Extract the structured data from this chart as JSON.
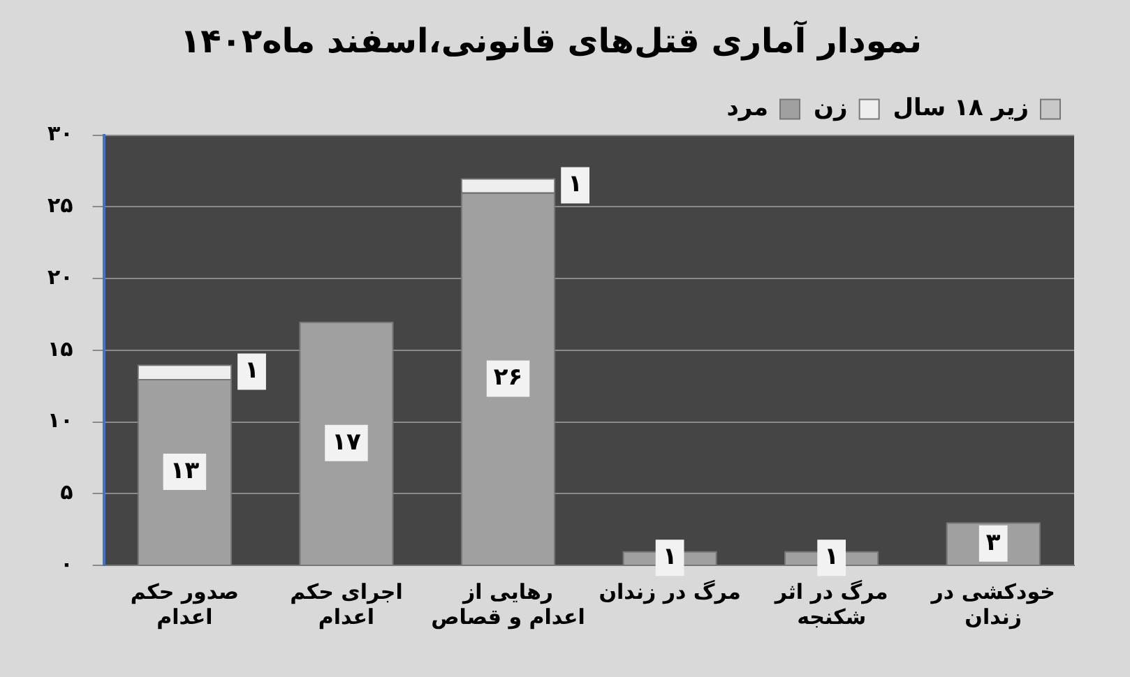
{
  "chart_data": {
    "type": "bar",
    "title": "نمودار آماری قتل‌های قانونی،اسفند ماه۱۴۰۲",
    "categories": [
      "صدور حکم اعدام",
      "اجرای حکم اعدام",
      "رهایی از اعدام و قصاص",
      "مرگ در زندان",
      "مرگ در اثر شکنجه",
      "خودکشی در زندان"
    ],
    "stacked": true,
    "ylim": [
      0,
      30
    ],
    "yticks": [
      {
        "value": 0,
        "label": "۰"
      },
      {
        "value": 5,
        "label": "۵"
      },
      {
        "value": 10,
        "label": "۱۰"
      },
      {
        "value": 15,
        "label": "۱۵"
      },
      {
        "value": 20,
        "label": "۲۰"
      },
      {
        "value": 25,
        "label": "۲۵"
      },
      {
        "value": 30,
        "label": "۳۰"
      }
    ],
    "grid": "y",
    "legend": "top right",
    "series": [
      {
        "name": "مرد",
        "color": "#a0a0a0",
        "values": [
          13,
          17,
          26,
          1,
          1,
          3
        ],
        "value_labels": [
          "۱۳",
          "۱۷",
          "۲۶",
          "۱",
          "۱",
          "۳"
        ]
      },
      {
        "name": "زن",
        "color": "#eeeeee",
        "values": [
          1,
          null,
          1,
          null,
          null,
          null
        ],
        "value_labels": [
          "۱",
          null,
          "۱",
          null,
          null,
          null
        ]
      },
      {
        "name": "زیر ۱۸ سال",
        "color": "#c8c8c8",
        "values": [
          null,
          null,
          null,
          null,
          null,
          null
        ]
      }
    ]
  }
}
